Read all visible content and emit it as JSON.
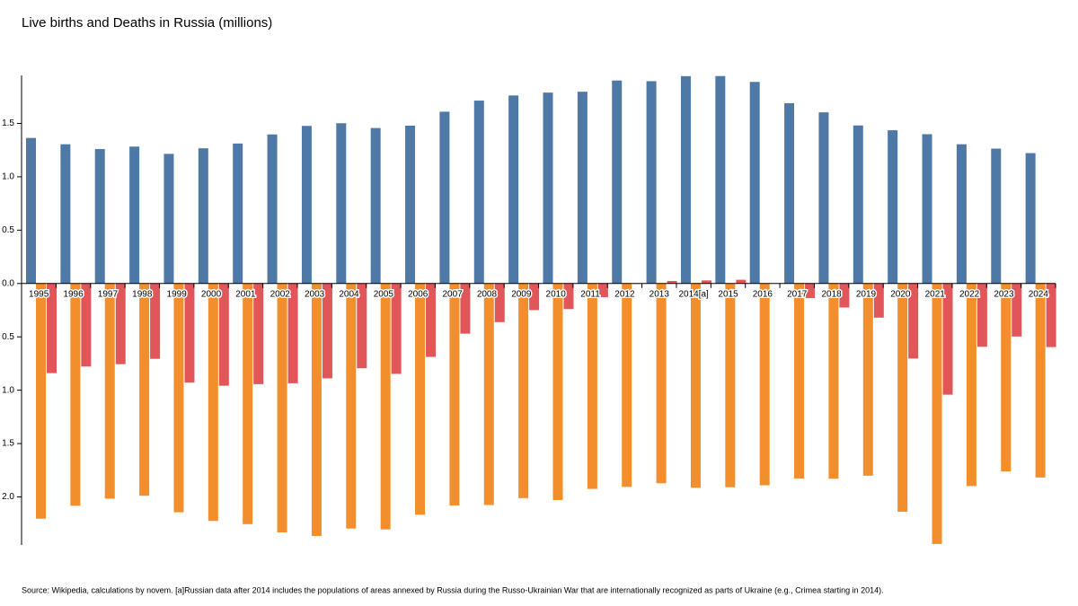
{
  "chart_data": {
    "type": "bar",
    "title": "Live births and Deaths in Russia (millions)",
    "source": "Source: Wikipedia, calculations by novem. [a]Russian data after 2014 includes the populations of areas annexed by Russia during the Russo-Ukrainian War that are internationally recognized as parts of Ukraine (e.g., Crimea starting in 2014).",
    "categories": [
      "1995",
      "1996",
      "1997",
      "1998",
      "1999",
      "2000",
      "2001",
      "2002",
      "2003",
      "2004",
      "2005",
      "2006",
      "2007",
      "2008",
      "2009",
      "2010",
      "2011",
      "2012",
      "2013",
      "2014[a]",
      "2015",
      "2016",
      "2017",
      "2018",
      "2019",
      "2020",
      "2021",
      "2022",
      "2023",
      "2024"
    ],
    "series": [
      {
        "color": "#4e79a7",
        "values": [
          1.364,
          1.305,
          1.26,
          1.283,
          1.215,
          1.267,
          1.312,
          1.397,
          1.477,
          1.502,
          1.457,
          1.479,
          1.61,
          1.714,
          1.762,
          1.789,
          1.797,
          1.902,
          1.896,
          1.943,
          1.944,
          1.889,
          1.69,
          1.604,
          1.481,
          1.436,
          1.399,
          1.305,
          1.264,
          1.222
        ]
      },
      {
        "color": "#f28e2b",
        "values": [
          -2.204,
          -2.083,
          -2.016,
          -1.989,
          -2.144,
          -2.225,
          -2.255,
          -2.332,
          -2.366,
          -2.296,
          -2.304,
          -2.167,
          -2.08,
          -2.076,
          -2.011,
          -2.029,
          -1.925,
          -1.906,
          -1.872,
          -1.914,
          -1.909,
          -1.891,
          -1.827,
          -1.829,
          -1.801,
          -2.139,
          -2.441,
          -1.898,
          -1.761,
          -1.818
        ]
      },
      {
        "color": "#e15759",
        "values": [
          -0.84,
          -0.778,
          -0.756,
          -0.706,
          -0.929,
          -0.958,
          -0.943,
          -0.935,
          -0.889,
          -0.794,
          -0.847,
          -0.688,
          -0.47,
          -0.362,
          -0.249,
          -0.24,
          -0.128,
          -0.004,
          0.024,
          0.029,
          0.035,
          -0.002,
          -0.137,
          -0.225,
          -0.32,
          -0.703,
          -1.042,
          -0.593,
          -0.497,
          -0.596
        ]
      }
    ],
    "ylim": [
      -2.45,
      1.95
    ],
    "yticks": [
      {
        "value": -2,
        "label": "2.0"
      },
      {
        "value": -1.5,
        "label": "1.5"
      },
      {
        "value": -1,
        "label": "1.0"
      },
      {
        "value": -0.5,
        "label": "0.5"
      },
      {
        "value": 0,
        "label": "0.0"
      },
      0.5,
      {
        "value": 1,
        "label": "1.0"
      },
      1.5
    ],
    "grid": false
  }
}
